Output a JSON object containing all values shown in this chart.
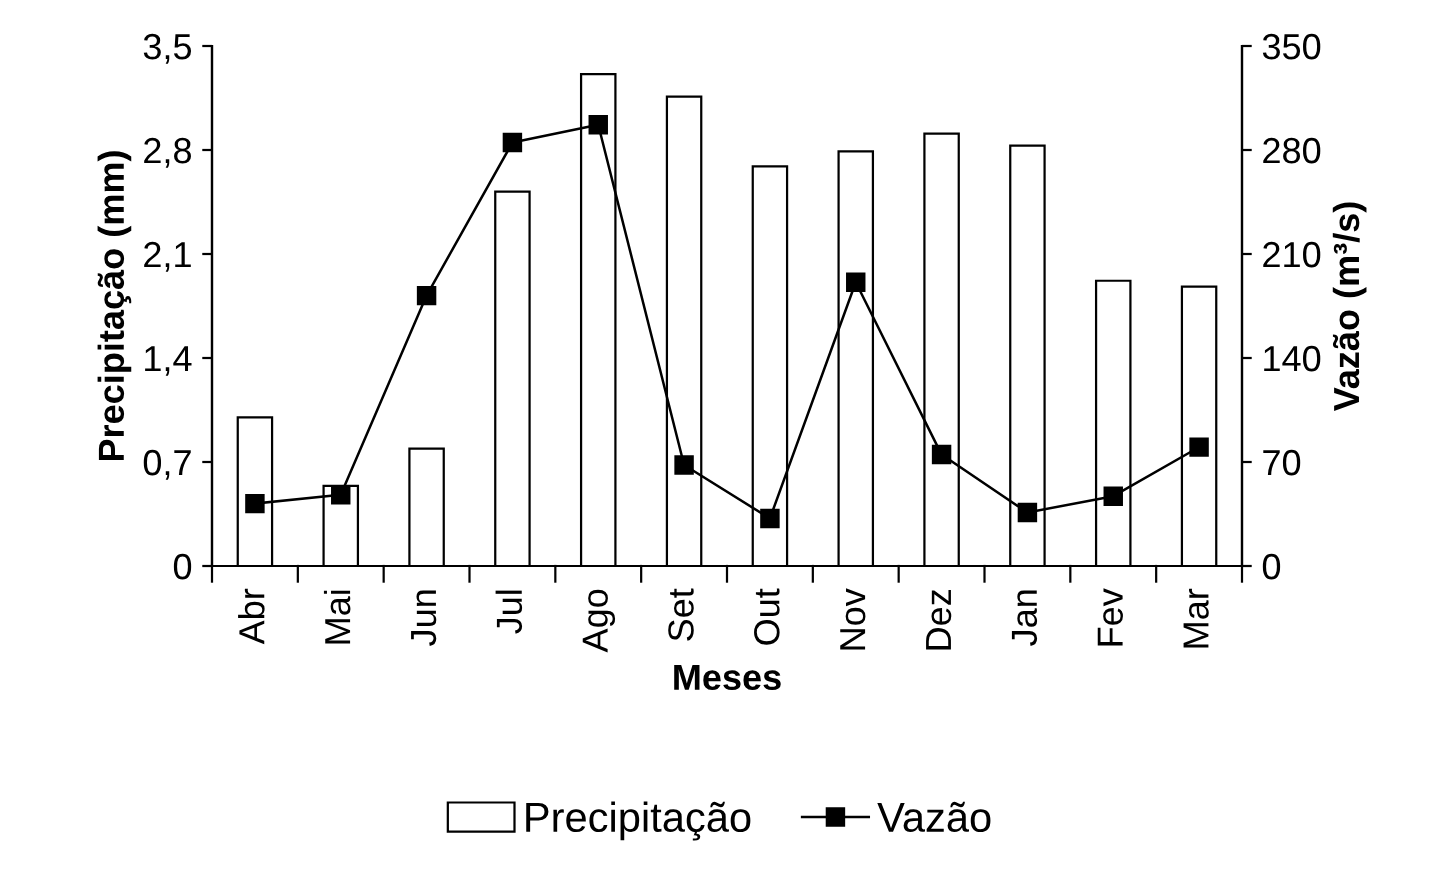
{
  "chart_data": {
    "type": "bar",
    "xlabel": "Meses",
    "ylabel": "Precipitação (mm)",
    "y2label": "Vazão (m³/s)",
    "categories": [
      "Abr",
      "Mai",
      "Jun",
      "Jul",
      "Ago",
      "Set",
      "Out",
      "Nov",
      "Dez",
      "Jan",
      "Fev",
      "Mar"
    ],
    "series": [
      {
        "name": "Precipitação",
        "color": "#ffffff",
        "values": [
          1.0,
          0.54,
          0.79,
          2.52,
          3.31,
          3.16,
          2.69,
          2.79,
          2.91,
          2.83,
          1.92,
          1.88
        ]
      },
      {
        "name": "Vazão",
        "type": "line",
        "axis": "y2",
        "color": "#000000",
        "marker": "square",
        "values": [
          42,
          48,
          182,
          285,
          297,
          68,
          32,
          191,
          75,
          36,
          47,
          80
        ]
      }
    ],
    "ylim": [
      0,
      3.5
    ],
    "yticks": [
      0,
      {
        "value": 0.7,
        "label": "0,7"
      },
      {
        "value": 1.4,
        "label": "1,4"
      },
      {
        "value": 2.1,
        "label": "2,1"
      },
      {
        "value": 2.8,
        "label": "2,8"
      },
      {
        "value": 3.5,
        "label": "3,5"
      }
    ],
    "y2lim": [
      0,
      350
    ],
    "y2ticks": [
      0,
      70,
      140,
      210,
      280,
      350
    ],
    "legend": "bottom",
    "grid": false
  }
}
